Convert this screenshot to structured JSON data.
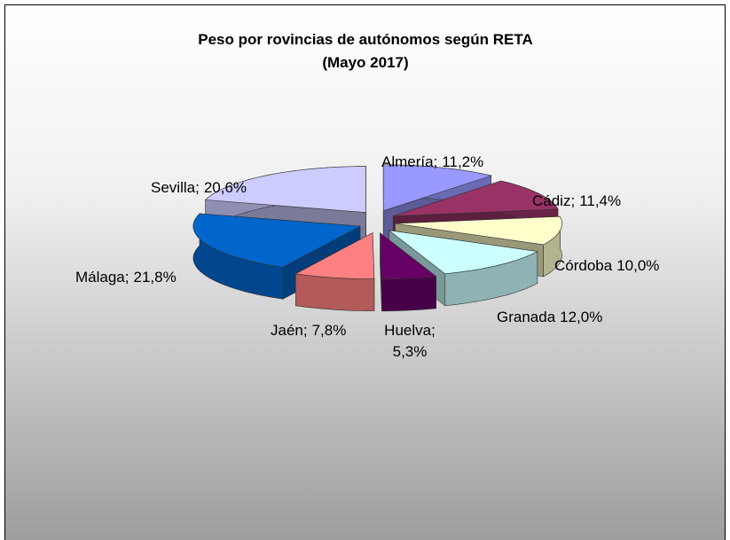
{
  "chart_data": {
    "type": "pie3d",
    "title": "Peso por rovincias de autónomos según RETA",
    "subtitle": "(Mayo 2017)",
    "categories": [
      "Almería;",
      "Cádiz;",
      "Córdoba",
      "Granada",
      "Huelva;",
      "Jaén;",
      "Málaga;",
      "Sevilla;"
    ],
    "values": [
      11.2,
      11.4,
      10.0,
      12.0,
      5.3,
      7.8,
      21.8,
      20.6
    ],
    "value_labels": [
      "11,2%",
      "11,4%",
      "10,0%",
      "12,0%",
      "5,3%",
      "7,8%",
      "21,8%",
      "20,6%"
    ],
    "colors": [
      "#9999ff",
      "#993366",
      "#ffffcc",
      "#ccffff",
      "#660066",
      "#ff8080",
      "#0066cc",
      "#ccccff"
    ]
  }
}
